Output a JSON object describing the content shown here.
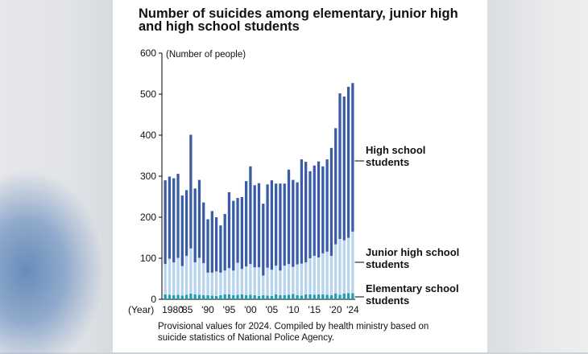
{
  "title_line1": "Number of suicides among elementary, junior high",
  "title_line2": "and high school students",
  "unit_label": "(Number of people)",
  "year_label": "(Year)",
  "note_line1": "Provisional values for 2024. Compiled by health ministry based on",
  "note_line2": "suicide statistics of National Police Agency.",
  "colors": {
    "high": "#3a5ca6",
    "junior": "#b7d4ee",
    "elementary": "#1f9bb3",
    "axis": "#000000"
  },
  "chart_data": {
    "type": "bar",
    "stacked": true,
    "title": "Number of suicides among elementary, junior high and high school students",
    "xlabel": "(Year)",
    "ylabel": "(Number of people)",
    "ylim": [
      0,
      600
    ],
    "yticks": [
      0,
      100,
      200,
      300,
      400,
      500,
      600
    ],
    "xtick_labels": [
      "1980",
      "'85",
      "'90",
      "'95",
      "'00",
      "'05",
      "'10",
      "'15",
      "'20",
      "'24"
    ],
    "categories": [
      1980,
      1981,
      1982,
      1983,
      1984,
      1985,
      1986,
      1987,
      1988,
      1989,
      1990,
      1991,
      1992,
      1993,
      1994,
      1995,
      1996,
      1997,
      1998,
      1999,
      2000,
      2001,
      2002,
      2003,
      2004,
      2005,
      2006,
      2007,
      2008,
      2009,
      2010,
      2011,
      2012,
      2013,
      2014,
      2015,
      2016,
      2017,
      2018,
      2019,
      2020,
      2021,
      2022,
      2023,
      2024
    ],
    "series": [
      {
        "name": "Elementary school students",
        "values": [
          12,
          11,
          10,
          11,
          9,
          11,
          14,
          12,
          11,
          10,
          10,
          9,
          8,
          10,
          12,
          12,
          10,
          11,
          12,
          10,
          11,
          10,
          8,
          10,
          9,
          8,
          12,
          10,
          10,
          11,
          13,
          10,
          9,
          12,
          12,
          11,
          12,
          12,
          11,
          10,
          14,
          11,
          14,
          15,
          15
        ]
      },
      {
        "name": "Junior high school students",
        "values": [
          74,
          88,
          80,
          90,
          72,
          95,
          110,
          78,
          90,
          78,
          55,
          56,
          60,
          55,
          58,
          64,
          60,
          78,
          62,
          70,
          75,
          68,
          70,
          48,
          68,
          64,
          70,
          60,
          72,
          75,
          66,
          75,
          78,
          78,
          88,
          95,
          90,
          100,
          105,
          96,
          120,
          136,
          130,
          135,
          150
        ]
      },
      {
        "name": "High school students",
        "values": [
          204,
          200,
          205,
          205,
          172,
          160,
          277,
          180,
          190,
          148,
          130,
          150,
          132,
          115,
          138,
          185,
          170,
          158,
          175,
          208,
          238,
          200,
          205,
          175,
          203,
          218,
          200,
          212,
          200,
          230,
          212,
          200,
          254,
          245,
          212,
          220,
          234,
          212,
          225,
          263,
          283,
          355,
          350,
          368,
          362
        ]
      }
    ],
    "labels": {
      "high": [
        "High school",
        "students"
      ],
      "junior": [
        "Junior high school",
        "students"
      ],
      "elementary": [
        "Elementary school",
        "students"
      ]
    }
  }
}
